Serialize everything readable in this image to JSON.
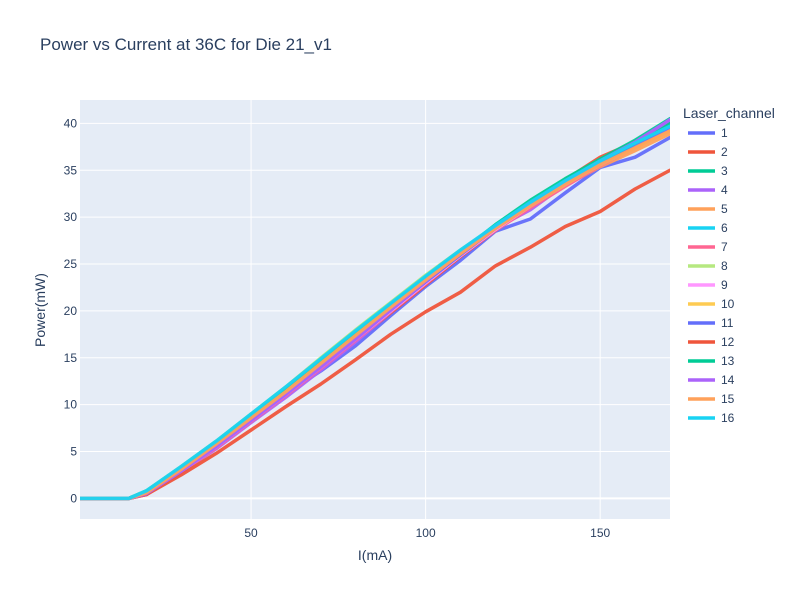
{
  "chart_data": {
    "type": "line",
    "title": "Power vs Current at 36C for Die 21_v1",
    "xlabel": "I(mA)",
    "ylabel": "Power(mW)",
    "xlim": [
      1,
      170
    ],
    "ylim": [
      -2.2,
      42.5
    ],
    "xticks": [
      50,
      100,
      150
    ],
    "yticks": [
      0,
      5,
      10,
      15,
      20,
      25,
      30,
      35,
      40
    ],
    "grid": true,
    "legend": {
      "title": "Laser_channel",
      "placement": "right"
    },
    "x": [
      1,
      15,
      20,
      30,
      40,
      50,
      60,
      70,
      80,
      90,
      100,
      110,
      120,
      130,
      140,
      150,
      160,
      170
    ],
    "series": [
      {
        "name": "1",
        "color": "#636efa",
        "values": [
          0,
          0,
          0.7,
          3.1,
          5.7,
          8.6,
          11.2,
          13.6,
          16.3,
          19.5,
          22.6,
          25.4,
          28.5,
          29.8,
          32.6,
          35.3,
          36.4,
          38.5
        ]
      },
      {
        "name": "2",
        "color": "#EF553B",
        "values": [
          0,
          0,
          0.5,
          2.9,
          5.6,
          8.4,
          11.0,
          13.8,
          16.8,
          19.8,
          22.8,
          25.8,
          28.6,
          31.4,
          34.0,
          36.4,
          38.0,
          40.0
        ]
      },
      {
        "name": "3",
        "color": "#00cc96",
        "values": [
          0,
          0,
          0.8,
          3.3,
          6.0,
          8.8,
          11.6,
          14.6,
          17.6,
          20.6,
          23.4,
          26.3,
          29.2,
          31.8,
          34.1,
          36.2,
          38.2,
          40.5
        ]
      },
      {
        "name": "4",
        "color": "#ab63fa",
        "values": [
          0,
          0,
          0.4,
          2.8,
          5.3,
          8.1,
          10.8,
          13.7,
          16.7,
          19.9,
          23.0,
          26.4,
          28.8,
          30.8,
          33.5,
          35.8,
          37.8,
          40.4
        ]
      },
      {
        "name": "5",
        "color": "#FFA15A",
        "values": [
          0,
          0,
          0.7,
          3.2,
          5.9,
          8.7,
          11.5,
          14.5,
          17.4,
          20.4,
          23.3,
          26.1,
          28.7,
          31.2,
          33.4,
          35.4,
          37.1,
          38.9
        ]
      },
      {
        "name": "6",
        "color": "#19d3f3",
        "values": [
          0,
          0,
          0.8,
          3.4,
          6.1,
          9.0,
          11.8,
          14.8,
          17.7,
          20.6,
          23.5,
          26.3,
          29.0,
          31.5,
          33.8,
          35.9,
          37.7,
          39.6
        ]
      },
      {
        "name": "7",
        "color": "#FF6692",
        "values": [
          0,
          0,
          0.4,
          2.8,
          5.4,
          8.2,
          11.0,
          13.9,
          16.9,
          19.9,
          22.9,
          25.9,
          28.6,
          31.0,
          33.3,
          35.5,
          37.4,
          39.3
        ]
      },
      {
        "name": "8",
        "color": "#B6E880",
        "values": [
          0,
          0,
          0.8,
          3.4,
          6.1,
          9.0,
          11.9,
          15.0,
          18.0,
          20.9,
          23.8,
          26.5,
          29.0,
          31.4,
          33.6,
          35.6,
          37.4,
          39.2
        ]
      },
      {
        "name": "9",
        "color": "#FF97FF",
        "values": [
          0,
          0,
          0.5,
          2.9,
          5.5,
          8.3,
          11.1,
          14.0,
          17.0,
          20.0,
          23.0,
          25.9,
          28.7,
          31.2,
          33.5,
          35.6,
          37.5,
          39.4
        ]
      },
      {
        "name": "10",
        "color": "#FECB52",
        "values": [
          0,
          0,
          0.7,
          3.2,
          5.9,
          8.8,
          11.6,
          14.6,
          17.6,
          20.6,
          23.5,
          26.3,
          28.9,
          31.3,
          33.5,
          35.6,
          37.4,
          39.2
        ]
      },
      {
        "name": "11",
        "color": "#636efa",
        "values": [
          0,
          0,
          0.6,
          3.0,
          5.6,
          8.4,
          11.2,
          14.1,
          17.1,
          20.1,
          23.1,
          26.0,
          28.8,
          31.3,
          33.6,
          35.7,
          37.7,
          39.6
        ]
      },
      {
        "name": "12",
        "color": "#EF553B",
        "values": [
          0,
          0,
          0.4,
          2.5,
          4.8,
          7.3,
          9.8,
          12.2,
          14.8,
          17.5,
          19.9,
          22.0,
          24.8,
          26.8,
          29.0,
          30.6,
          33.0,
          35.0
        ]
      },
      {
        "name": "13",
        "color": "#00cc96",
        "values": [
          0,
          0,
          0.7,
          3.2,
          5.9,
          8.8,
          11.6,
          14.6,
          17.6,
          20.6,
          23.5,
          26.3,
          29.0,
          31.5,
          33.8,
          36.0,
          37.9,
          40.0
        ]
      },
      {
        "name": "14",
        "color": "#ab63fa",
        "values": [
          0,
          0,
          0.5,
          2.9,
          5.5,
          8.3,
          11.1,
          14.0,
          17.0,
          20.1,
          23.2,
          26.2,
          29.0,
          31.5,
          33.8,
          36.0,
          38.0,
          40.4
        ]
      },
      {
        "name": "15",
        "color": "#FFA15A",
        "values": [
          0,
          0,
          0.6,
          3.1,
          5.8,
          8.6,
          11.4,
          14.4,
          17.4,
          20.4,
          23.3,
          26.1,
          28.8,
          31.2,
          33.5,
          35.6,
          37.4,
          39.2
        ]
      },
      {
        "name": "16",
        "color": "#19d3f3",
        "values": [
          0,
          0,
          0.8,
          3.4,
          6.1,
          9.0,
          11.9,
          14.9,
          17.9,
          20.8,
          23.7,
          26.5,
          29.1,
          31.6,
          33.9,
          36.0,
          37.9,
          39.7
        ]
      }
    ]
  }
}
